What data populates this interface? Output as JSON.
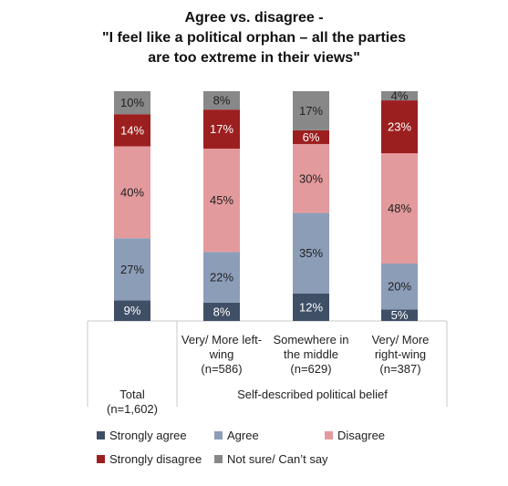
{
  "chart_data": {
    "type": "bar",
    "stacked": true,
    "percent": true,
    "title": [
      "Agree vs. disagree -",
      "\"I feel like a political orphan – all the parties",
      "are too extreme in their views\""
    ],
    "categories": [
      [
        "Total",
        "(n=1,602)"
      ],
      [
        "Very/ More left-",
        "wing",
        "(n=586)"
      ],
      [
        "Somewhere in",
        "the middle",
        "(n=629)"
      ],
      [
        "Very/ More",
        "right-wing",
        "(n=387)"
      ]
    ],
    "group_label": "Self-described political belief",
    "series": [
      {
        "name": "Strongly agree",
        "color": "#3f4f66",
        "values": [
          9,
          8,
          12,
          5
        ]
      },
      {
        "name": "Agree",
        "color": "#8c9db8",
        "values": [
          27,
          22,
          35,
          20
        ]
      },
      {
        "name": "Disagree",
        "color": "#e39a9c",
        "values": [
          40,
          45,
          30,
          48
        ]
      },
      {
        "name": "Strongly disagree",
        "color": "#9c1f1f",
        "values": [
          14,
          17,
          6,
          23
        ]
      },
      {
        "name": "Not sure/ Can’t say",
        "color": "#888888",
        "values": [
          10,
          8,
          17,
          4
        ]
      }
    ],
    "ylim": [
      0,
      100
    ],
    "legend_position": "bottom"
  }
}
